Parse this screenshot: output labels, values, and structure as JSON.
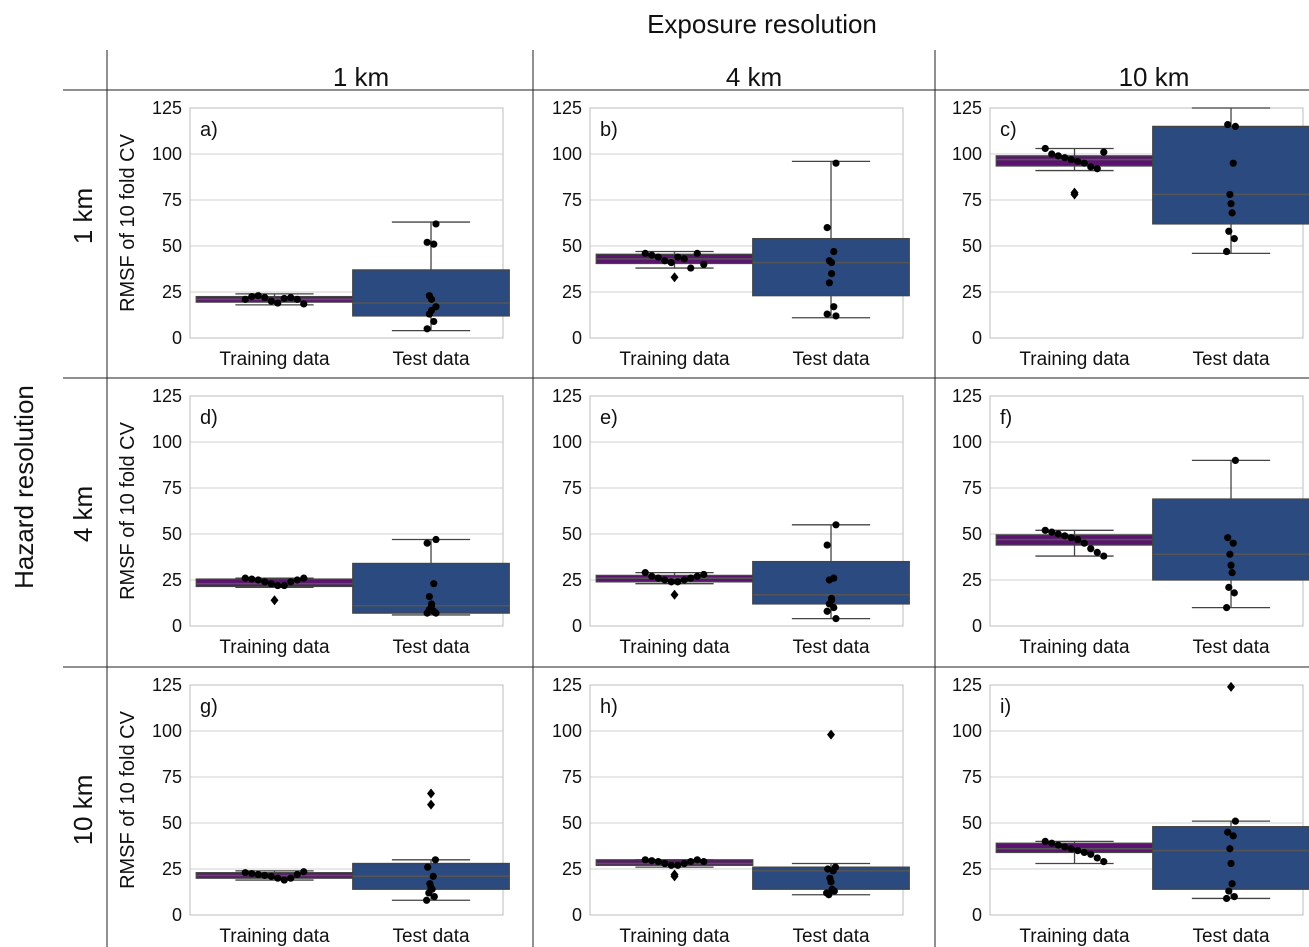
{
  "header": {
    "exposure_title": "Exposure resolution",
    "hazard_title": "Hazard resolution",
    "columns": [
      "1 km",
      "4 km",
      "10 km"
    ],
    "rows": [
      "1 km",
      "4 km",
      "10 km"
    ]
  },
  "colors": {
    "training_box": "#5c1270",
    "test_box": "#2a4a80",
    "median_line": "#555555",
    "grid": "#d0d0d0",
    "frame": "#c8c8c8",
    "points": "#000000"
  },
  "chart_data": [
    {
      "type": "box",
      "panel_label": "a)",
      "ylabel": "RMSF of 10 fold CV",
      "ylim": [
        0,
        125
      ],
      "yticks": [
        0,
        25,
        50,
        75,
        100,
        125
      ],
      "categories": [
        "Training data",
        "Test data"
      ],
      "boxes": [
        {
          "whisker_low": 18,
          "q1": 19.5,
          "median": 21,
          "q3": 22.5,
          "whisker_high": 24,
          "points": [
            21,
            22.5,
            23,
            22,
            20,
            19,
            21.5,
            22,
            21,
            18.5
          ],
          "outliers": []
        },
        {
          "whisker_low": 4,
          "q1": 12,
          "median": 19,
          "q3": 37,
          "whisker_high": 63,
          "points": [
            62,
            52,
            51,
            23,
            21,
            15,
            13,
            9,
            5,
            17
          ],
          "outliers": []
        }
      ]
    },
    {
      "type": "box",
      "panel_label": "b)",
      "ylabel": "",
      "ylim": [
        0,
        125
      ],
      "yticks": [
        0,
        25,
        50,
        75,
        100,
        125
      ],
      "categories": [
        "Training data",
        "Test data"
      ],
      "boxes": [
        {
          "whisker_low": 38,
          "q1": 40.5,
          "median": 43,
          "q3": 45.5,
          "whisker_high": 47,
          "points": [
            46,
            45,
            44,
            42,
            41,
            44,
            43,
            38,
            46,
            40
          ],
          "outliers": [
            33
          ]
        },
        {
          "whisker_low": 11,
          "q1": 23,
          "median": 41,
          "q3": 54,
          "whisker_high": 96,
          "points": [
            95,
            60,
            47,
            42,
            41,
            35,
            30,
            17,
            13,
            12
          ],
          "outliers": []
        }
      ]
    },
    {
      "type": "box",
      "panel_label": "c)",
      "ylabel": "",
      "ylim": [
        0,
        125
      ],
      "yticks": [
        0,
        25,
        50,
        75,
        100,
        125
      ],
      "categories": [
        "Training data",
        "Test data"
      ],
      "boxes": [
        {
          "whisker_low": 91,
          "q1": 93.5,
          "median": 97,
          "q3": 99,
          "whisker_high": 103,
          "points": [
            103,
            100,
            99,
            98,
            97,
            96,
            95,
            93,
            92,
            101
          ],
          "outliers": [
            79,
            78
          ]
        },
        {
          "whisker_low": 46,
          "q1": 62,
          "median": 78,
          "q3": 115,
          "whisker_high": 125,
          "points": [
            115,
            116,
            95,
            78,
            73,
            68,
            58,
            54,
            47
          ],
          "outliers": []
        }
      ]
    },
    {
      "type": "box",
      "panel_label": "d)",
      "ylabel": "RMSF of 10 fold CV",
      "ylim": [
        0,
        125
      ],
      "yticks": [
        0,
        25,
        50,
        75,
        100,
        125
      ],
      "categories": [
        "Training data",
        "Test data"
      ],
      "boxes": [
        {
          "whisker_low": 21,
          "q1": 21.5,
          "median": 23,
          "q3": 25.5,
          "whisker_high": 26,
          "points": [
            26,
            25.5,
            25,
            24,
            23,
            22,
            22,
            24,
            25,
            26
          ],
          "outliers": [
            14
          ]
        },
        {
          "whisker_low": 6,
          "q1": 7,
          "median": 11,
          "q3": 34,
          "whisker_high": 47,
          "points": [
            47,
            45,
            23,
            16,
            12,
            11,
            9,
            8,
            7,
            7
          ],
          "outliers": []
        }
      ]
    },
    {
      "type": "box",
      "panel_label": "e)",
      "ylabel": "",
      "ylim": [
        0,
        125
      ],
      "yticks": [
        0,
        25,
        50,
        75,
        100,
        125
      ],
      "categories": [
        "Training data",
        "Test data"
      ],
      "boxes": [
        {
          "whisker_low": 23,
          "q1": 24,
          "median": 26,
          "q3": 27.5,
          "whisker_high": 29,
          "points": [
            29,
            27,
            26,
            25,
            24,
            24,
            25,
            26,
            27,
            28
          ],
          "outliers": [
            17
          ]
        },
        {
          "whisker_low": 4,
          "q1": 12,
          "median": 17,
          "q3": 35,
          "whisker_high": 55,
          "points": [
            55,
            44,
            26,
            25,
            15,
            14,
            12,
            10,
            8,
            4
          ],
          "outliers": []
        }
      ]
    },
    {
      "type": "box",
      "panel_label": "f)",
      "ylabel": "",
      "ylim": [
        0,
        125
      ],
      "yticks": [
        0,
        25,
        50,
        75,
        100,
        125
      ],
      "categories": [
        "Training data",
        "Test data"
      ],
      "boxes": [
        {
          "whisker_low": 38,
          "q1": 44,
          "median": 47,
          "q3": 49.5,
          "whisker_high": 52,
          "points": [
            52,
            51,
            50,
            49,
            48,
            47,
            45,
            42,
            40,
            38
          ],
          "outliers": []
        },
        {
          "whisker_low": 10,
          "q1": 25,
          "median": 39,
          "q3": 69,
          "whisker_high": 90,
          "points": [
            90,
            48,
            45,
            39,
            33,
            29,
            21,
            18,
            10
          ],
          "outliers": []
        }
      ]
    },
    {
      "type": "box",
      "panel_label": "g)",
      "ylabel": "RMSF of 10 fold CV",
      "ylim": [
        0,
        125
      ],
      "yticks": [
        0,
        25,
        50,
        75,
        100,
        125
      ],
      "categories": [
        "Training data",
        "Test data"
      ],
      "boxes": [
        {
          "whisker_low": 19,
          "q1": 20,
          "median": 21.5,
          "q3": 23,
          "whisker_high": 24,
          "points": [
            23,
            22.5,
            22,
            21.5,
            21,
            20,
            19,
            20,
            22,
            23.5
          ],
          "outliers": []
        },
        {
          "whisker_low": 8,
          "q1": 14,
          "median": 21,
          "q3": 28,
          "whisker_high": 30,
          "points": [
            30,
            26,
            21,
            17,
            15,
            14,
            12,
            10,
            8
          ],
          "outliers": [
            66,
            60
          ]
        }
      ]
    },
    {
      "type": "box",
      "panel_label": "h)",
      "ylabel": "",
      "ylim": [
        0,
        125
      ],
      "yticks": [
        0,
        25,
        50,
        75,
        100,
        125
      ],
      "categories": [
        "Training data",
        "Test data"
      ],
      "boxes": [
        {
          "whisker_low": 26,
          "q1": 27,
          "median": 28,
          "q3": 30,
          "whisker_high": 30,
          "points": [
            30,
            29.5,
            29,
            28,
            27,
            27,
            28,
            29,
            30,
            29
          ],
          "outliers": [
            22,
            21
          ]
        },
        {
          "whisker_low": 11,
          "q1": 14,
          "median": 24,
          "q3": 26,
          "whisker_high": 28,
          "points": [
            26,
            25,
            24,
            20,
            18,
            14,
            11,
            13,
            12
          ],
          "outliers": [
            98
          ]
        }
      ]
    },
    {
      "type": "box",
      "panel_label": "i)",
      "ylabel": "",
      "ylim": [
        0,
        125
      ],
      "yticks": [
        0,
        25,
        50,
        75,
        100,
        125
      ],
      "categories": [
        "Training data",
        "Test data"
      ],
      "boxes": [
        {
          "whisker_low": 28,
          "q1": 34,
          "median": 36,
          "q3": 39,
          "whisker_high": 40,
          "points": [
            40,
            39,
            38,
            37,
            36,
            35,
            34,
            33,
            31,
            29
          ],
          "outliers": []
        },
        {
          "whisker_low": 9,
          "q1": 14,
          "median": 35,
          "q3": 48,
          "whisker_high": 51,
          "points": [
            51,
            45,
            43,
            36,
            28,
            17,
            13,
            10,
            9
          ],
          "outliers": [
            124
          ]
        }
      ]
    }
  ]
}
